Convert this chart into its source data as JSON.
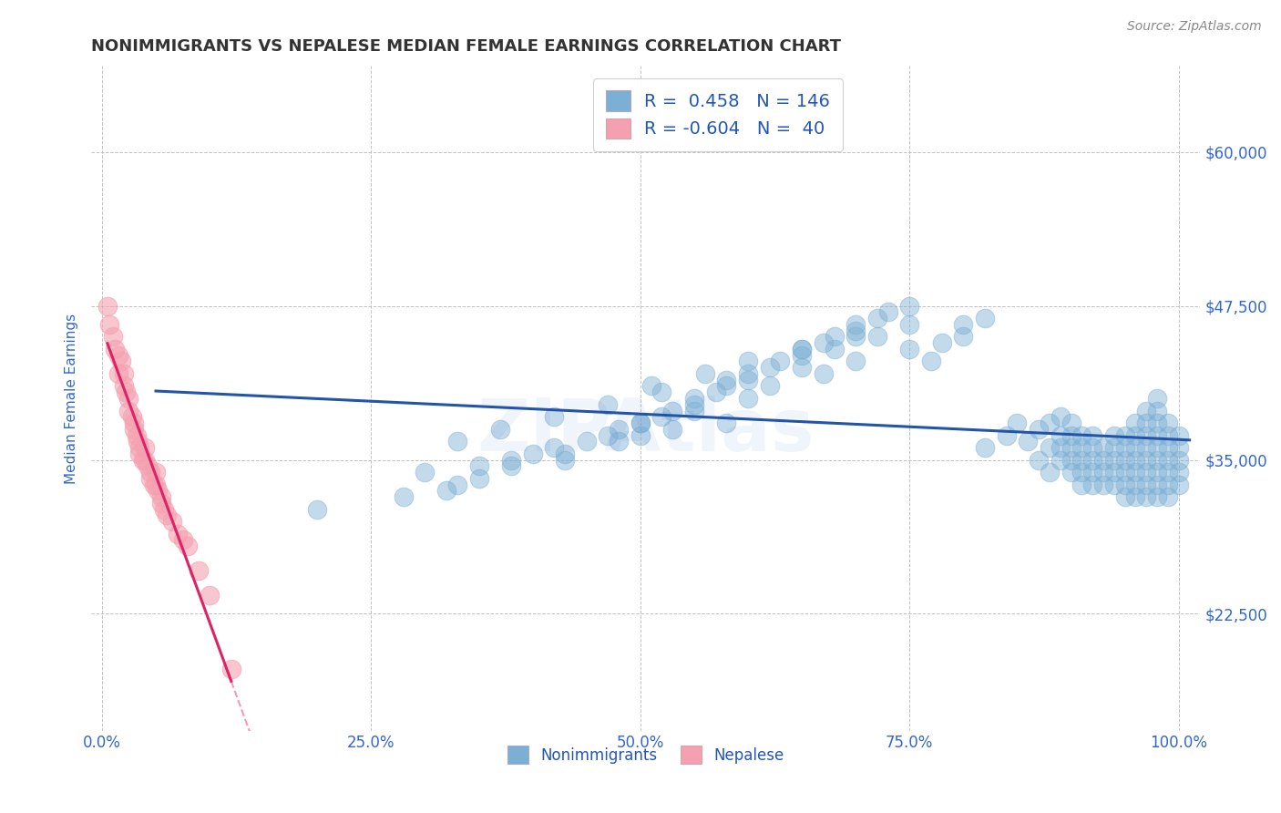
{
  "title": "NONIMMIGRANTS VS NEPALESE MEDIAN FEMALE EARNINGS CORRELATION CHART",
  "source": "Source: ZipAtlas.com",
  "ylabel": "Median Female Earnings",
  "xlim": [
    -0.01,
    1.02
  ],
  "ylim": [
    13000,
    67000
  ],
  "yticks": [
    22500,
    35000,
    47500,
    60000
  ],
  "ytick_labels": [
    "$22,500",
    "$35,000",
    "$47,500",
    "$60,000"
  ],
  "xticks": [
    0.0,
    0.25,
    0.5,
    0.75,
    1.0
  ],
  "xtick_labels": [
    "0.0%",
    "25.0%",
    "50.0%",
    "75.0%",
    "100.0%"
  ],
  "blue_color": "#7bafd4",
  "pink_color": "#f4a0b0",
  "blue_line_color": "#2255aa",
  "pink_line_color": "#dd2266",
  "blue_R": 0.458,
  "blue_N": 146,
  "pink_R": -0.604,
  "pink_N": 40,
  "legend_color": "#2255bb",
  "background_color": "#ffffff",
  "grid_color": "#bbbbbb",
  "title_color": "#333333",
  "axis_tick_color": "#3366cc",
  "nonimmigrants_x": [
    0.2,
    0.28,
    0.3,
    0.33,
    0.35,
    0.38,
    0.4,
    0.42,
    0.43,
    0.45,
    0.47,
    0.48,
    0.5,
    0.5,
    0.52,
    0.53,
    0.55,
    0.55,
    0.57,
    0.58,
    0.58,
    0.6,
    0.6,
    0.62,
    0.63,
    0.65,
    0.65,
    0.67,
    0.68,
    0.7,
    0.7,
    0.72,
    0.73,
    0.75,
    0.75,
    0.77,
    0.78,
    0.8,
    0.8,
    0.82,
    0.82,
    0.84,
    0.85,
    0.86,
    0.87,
    0.87,
    0.88,
    0.88,
    0.88,
    0.89,
    0.89,
    0.89,
    0.89,
    0.9,
    0.9,
    0.9,
    0.9,
    0.9,
    0.91,
    0.91,
    0.91,
    0.91,
    0.91,
    0.92,
    0.92,
    0.92,
    0.92,
    0.92,
    0.93,
    0.93,
    0.93,
    0.93,
    0.94,
    0.94,
    0.94,
    0.94,
    0.94,
    0.95,
    0.95,
    0.95,
    0.95,
    0.95,
    0.95,
    0.96,
    0.96,
    0.96,
    0.96,
    0.96,
    0.96,
    0.96,
    0.97,
    0.97,
    0.97,
    0.97,
    0.97,
    0.97,
    0.97,
    0.97,
    0.98,
    0.98,
    0.98,
    0.98,
    0.98,
    0.98,
    0.98,
    0.98,
    0.98,
    0.99,
    0.99,
    0.99,
    0.99,
    0.99,
    0.99,
    0.99,
    1.0,
    1.0,
    1.0,
    1.0,
    1.0,
    0.5,
    0.55,
    0.6,
    0.53,
    0.48,
    0.43,
    0.38,
    0.35,
    0.32,
    0.62,
    0.67,
    0.7,
    0.65,
    0.58,
    0.52,
    0.47,
    0.42,
    0.37,
    0.33,
    0.68,
    0.72,
    0.75,
    0.7,
    0.65,
    0.6,
    0.56,
    0.51
  ],
  "nonimmigrants_y": [
    31000,
    32000,
    34000,
    33000,
    34500,
    35000,
    35500,
    36000,
    35000,
    36500,
    37000,
    37500,
    38000,
    37000,
    38500,
    39000,
    39500,
    40000,
    40500,
    41000,
    38000,
    41500,
    42000,
    42500,
    43000,
    43500,
    44000,
    44500,
    45000,
    45500,
    46000,
    46500,
    47000,
    47500,
    44000,
    43000,
    44500,
    45000,
    46000,
    46500,
    36000,
    37000,
    38000,
    36500,
    35000,
    37500,
    34000,
    36000,
    38000,
    35000,
    36000,
    37000,
    38500,
    34000,
    35000,
    36000,
    37000,
    38000,
    33000,
    34000,
    35000,
    36000,
    37000,
    33000,
    34000,
    35000,
    36000,
    37000,
    33000,
    34000,
    35000,
    36000,
    33000,
    34000,
    35000,
    36000,
    37000,
    32000,
    33000,
    34000,
    35000,
    36000,
    37000,
    32000,
    33000,
    34000,
    35000,
    36000,
    37000,
    38000,
    32000,
    33000,
    34000,
    35000,
    36000,
    37000,
    38000,
    39000,
    32000,
    33000,
    34000,
    35000,
    36000,
    37000,
    38000,
    39000,
    40000,
    32000,
    33000,
    34000,
    35000,
    36000,
    37000,
    38000,
    33000,
    34000,
    35000,
    36000,
    37000,
    38000,
    39000,
    40000,
    37500,
    36500,
    35500,
    34500,
    33500,
    32500,
    41000,
    42000,
    43000,
    42500,
    41500,
    40500,
    39500,
    38500,
    37500,
    36500,
    44000,
    45000,
    46000,
    45000,
    44000,
    43000,
    42000,
    41000
  ],
  "nepalese_x": [
    0.005,
    0.007,
    0.01,
    0.012,
    0.015,
    0.015,
    0.018,
    0.02,
    0.02,
    0.022,
    0.025,
    0.025,
    0.028,
    0.03,
    0.03,
    0.032,
    0.033,
    0.035,
    0.035,
    0.038,
    0.04,
    0.04,
    0.042,
    0.045,
    0.045,
    0.048,
    0.05,
    0.05,
    0.052,
    0.055,
    0.055,
    0.058,
    0.06,
    0.065,
    0.07,
    0.075,
    0.08,
    0.09,
    0.1,
    0.12
  ],
  "nepalese_y": [
    47500,
    46000,
    45000,
    44000,
    43500,
    42000,
    43000,
    42000,
    41000,
    40500,
    40000,
    39000,
    38500,
    38000,
    37500,
    37000,
    36500,
    36000,
    35500,
    35000,
    36000,
    35000,
    34500,
    34000,
    33500,
    33000,
    34000,
    33000,
    32500,
    32000,
    31500,
    31000,
    30500,
    30000,
    29000,
    28500,
    28000,
    26000,
    24000,
    18000
  ]
}
